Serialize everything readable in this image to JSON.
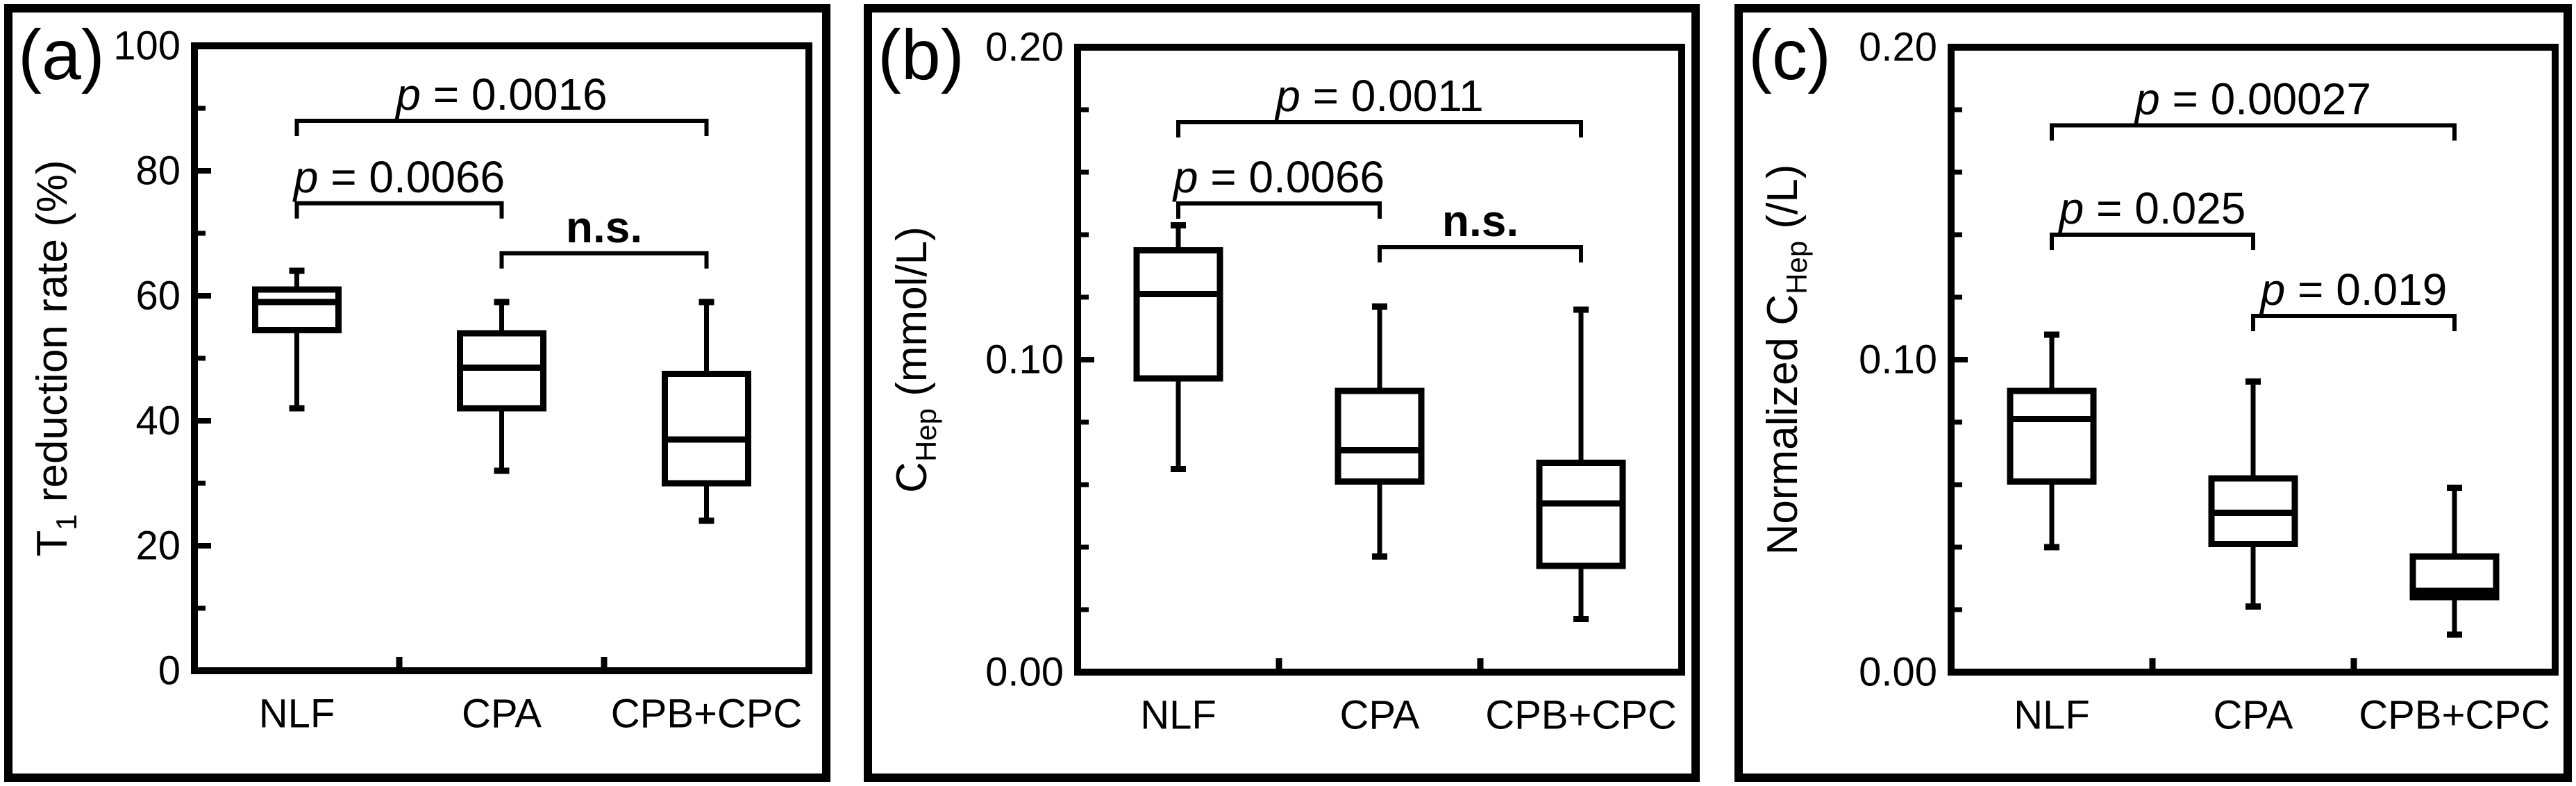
{
  "figure": {
    "background_color": "#ffffff",
    "ink_color": "#000000",
    "description_labels": [
      "(a)",
      "(b)",
      "(c)"
    ]
  },
  "chart_data": [
    {
      "id": "a",
      "type": "box",
      "panel_label": "(a)",
      "ylabel": "T1 reduction rate (%)",
      "ylabel_segments": [
        {
          "text": "T"
        },
        {
          "text": "1",
          "sub": true
        },
        {
          "text": " reduction rate (%)"
        }
      ],
      "ylim": [
        0,
        100
      ],
      "ytick_major": [
        0,
        20,
        40,
        60,
        80,
        100
      ],
      "ytick_labels": [
        "0",
        "20",
        "40",
        "60",
        "80",
        "100"
      ],
      "ytick_minor": [
        10,
        30,
        50,
        70,
        90
      ],
      "grid": false,
      "legend": "none",
      "categories": [
        "NLF",
        "CPA",
        "CPB+CPC"
      ],
      "boxes": [
        {
          "category": "NLF",
          "min": 42,
          "q1": 54.5,
          "median": 59,
          "q3": 61,
          "max": 64
        },
        {
          "category": "CPA",
          "min": 32,
          "q1": 42,
          "median": 48.5,
          "q3": 54,
          "max": 59
        },
        {
          "category": "CPB+CPC",
          "min": 24,
          "q1": 30,
          "median": 37,
          "q3": 47.5,
          "max": 59
        }
      ],
      "annotations": [
        {
          "label": "p = 0.0016",
          "style": "p-italic",
          "from": "NLF",
          "to": "CPB+CPC",
          "line_y": 88
        },
        {
          "label": "p = 0.0066",
          "style": "p-italic",
          "from": "NLF",
          "to": "CPA",
          "line_y": 74.8
        },
        {
          "label": "n.s.",
          "style": "bold",
          "from": "CPA",
          "to": "CPB+CPC",
          "line_y": 66.8
        }
      ]
    },
    {
      "id": "b",
      "type": "box",
      "panel_label": "(b)",
      "ylabel": "CHep (mmol/L)",
      "ylabel_segments": [
        {
          "text": "C"
        },
        {
          "text": "Hep",
          "sub": true
        },
        {
          "text": " (mmol/L)"
        }
      ],
      "ylim": [
        0,
        0.2
      ],
      "ytick_major": [
        0,
        0.1,
        0.2
      ],
      "ytick_labels": [
        "0.00",
        "0.10",
        "0.20"
      ],
      "ytick_minor": [
        0.02,
        0.04,
        0.06,
        0.08,
        0.12,
        0.14,
        0.16,
        0.18
      ],
      "grid": false,
      "legend": "none",
      "categories": [
        "NLF",
        "CPA",
        "CPB+CPC"
      ],
      "boxes": [
        {
          "category": "NLF",
          "min": 0.065,
          "q1": 0.094,
          "median": 0.121,
          "q3": 0.135,
          "max": 0.143
        },
        {
          "category": "CPA",
          "min": 0.037,
          "q1": 0.061,
          "median": 0.071,
          "q3": 0.09,
          "max": 0.117
        },
        {
          "category": "CPB+CPC",
          "min": 0.017,
          "q1": 0.034,
          "median": 0.054,
          "q3": 0.067,
          "max": 0.116
        }
      ],
      "annotations": [
        {
          "label": "p = 0.0011",
          "style": "p-italic",
          "from": "NLF",
          "to": "CPB+CPC",
          "line_y": 0.176
        },
        {
          "label": "p = 0.0066",
          "style": "p-italic",
          "from": "NLF",
          "to": "CPA",
          "line_y": 0.15
        },
        {
          "label": "n.s.",
          "style": "bold",
          "from": "CPA",
          "to": "CPB+CPC",
          "line_y": 0.136
        }
      ]
    },
    {
      "id": "c",
      "type": "box",
      "panel_label": "(c)",
      "ylabel": "Normalized CHep (/L)",
      "ylabel_segments": [
        {
          "text": "Normalized C"
        },
        {
          "text": "Hep",
          "sub": true
        },
        {
          "text": " (/L)"
        }
      ],
      "ylim": [
        0,
        0.2
      ],
      "ytick_major": [
        0,
        0.1,
        0.2
      ],
      "ytick_labels": [
        "0.00",
        "0.10",
        "0.20"
      ],
      "ytick_minor": [
        0.02,
        0.04,
        0.06,
        0.08,
        0.12,
        0.14,
        0.16,
        0.18
      ],
      "grid": false,
      "legend": "none",
      "categories": [
        "NLF",
        "CPA",
        "CPB+CPC"
      ],
      "boxes": [
        {
          "category": "NLF",
          "min": 0.04,
          "q1": 0.061,
          "median": 0.081,
          "q3": 0.09,
          "max": 0.108
        },
        {
          "category": "CPA",
          "min": 0.021,
          "q1": 0.041,
          "median": 0.051,
          "q3": 0.062,
          "max": 0.093
        },
        {
          "category": "CPB+CPC",
          "min": 0.012,
          "q1": 0.024,
          "median": 0.026,
          "q3": 0.037,
          "max": 0.059
        }
      ],
      "annotations": [
        {
          "label": "p = 0.00027",
          "style": "p-italic",
          "from": "NLF",
          "to": "CPB+CPC",
          "line_y": 0.175
        },
        {
          "label": "p = 0.025",
          "style": "p-italic",
          "from": "NLF",
          "to": "CPA",
          "line_y": 0.14
        },
        {
          "label": "p = 0.019",
          "style": "p-italic",
          "from": "CPA",
          "to": "CPB+CPC",
          "line_y": 0.114
        }
      ]
    }
  ]
}
